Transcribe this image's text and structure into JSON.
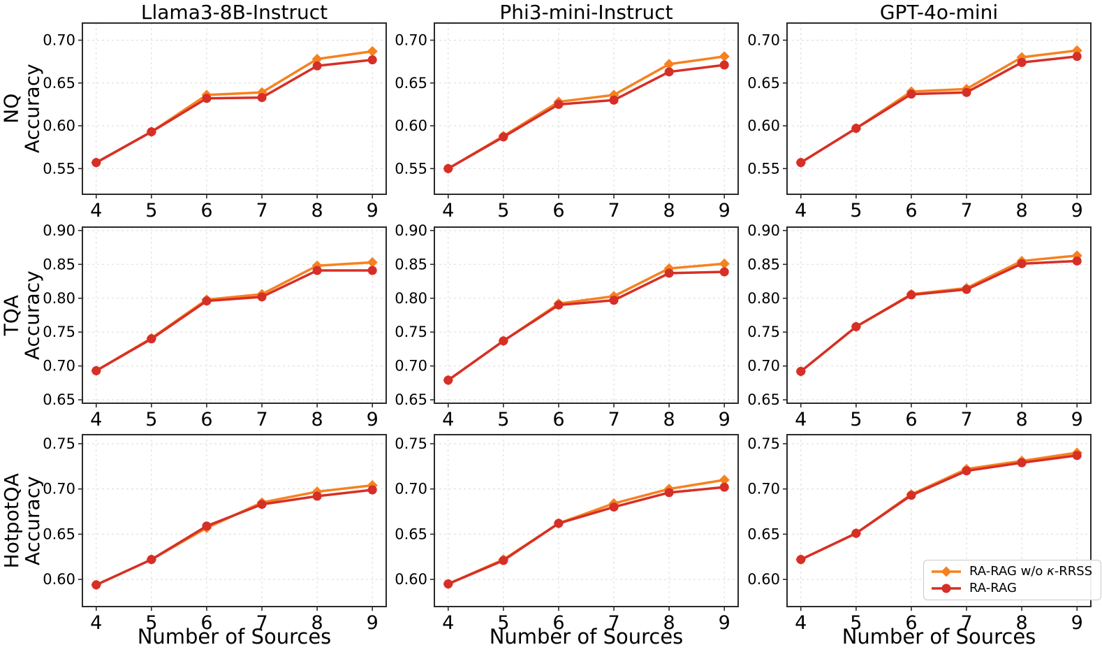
{
  "figure": {
    "column_titles": [
      "Llama3-8B-Instruct",
      "Phi3-mini-Instruct",
      "GPT-4o-mini"
    ],
    "row_labels": [
      {
        "dataset": "NQ",
        "metric": "Accuracy"
      },
      {
        "dataset": "TQA",
        "metric": "Accuracy"
      },
      {
        "dataset": "HotpotQA",
        "metric": "Accuracy"
      }
    ],
    "xlabel": "Number of Sources",
    "grid_style": "dashed",
    "legend": {
      "location": "lower right of bottom-right subplot",
      "entries": [
        {
          "label": "RA-RAG w/o κ-RRSS",
          "color": "#F5821F",
          "marker": "diamond"
        },
        {
          "label": "RA-RAG",
          "color": "#D62F27",
          "marker": "circle"
        }
      ]
    }
  },
  "chart_data": [
    {
      "type": "line",
      "model": "Llama3-8B-Instruct",
      "dataset": "NQ",
      "x": [
        4,
        5,
        6,
        7,
        8,
        9
      ],
      "xlim": [
        3.75,
        9.25
      ],
      "ylim": [
        0.52,
        0.72
      ],
      "yticks": [
        0.55,
        0.6,
        0.65,
        0.7
      ],
      "series": [
        {
          "name": "RA-RAG w/o κ-RRSS",
          "marker": "diamond",
          "color": "#F5821F",
          "values": [
            0.557,
            0.593,
            0.636,
            0.639,
            0.678,
            0.687
          ]
        },
        {
          "name": "RA-RAG",
          "marker": "circle",
          "color": "#D62F27",
          "values": [
            0.557,
            0.593,
            0.632,
            0.633,
            0.67,
            0.677
          ]
        }
      ]
    },
    {
      "type": "line",
      "model": "Phi3-mini-Instruct",
      "dataset": "NQ",
      "x": [
        4,
        5,
        6,
        7,
        8,
        9
      ],
      "xlim": [
        3.75,
        9.25
      ],
      "ylim": [
        0.52,
        0.72
      ],
      "yticks": [
        0.55,
        0.6,
        0.65,
        0.7
      ],
      "series": [
        {
          "name": "RA-RAG w/o κ-RRSS",
          "marker": "diamond",
          "color": "#F5821F",
          "values": [
            0.55,
            0.588,
            0.628,
            0.636,
            0.672,
            0.681
          ]
        },
        {
          "name": "RA-RAG",
          "marker": "circle",
          "color": "#D62F27",
          "values": [
            0.55,
            0.587,
            0.625,
            0.63,
            0.663,
            0.671
          ]
        }
      ]
    },
    {
      "type": "line",
      "model": "GPT-4o-mini",
      "dataset": "NQ",
      "x": [
        4,
        5,
        6,
        7,
        8,
        9
      ],
      "xlim": [
        3.75,
        9.25
      ],
      "ylim": [
        0.52,
        0.72
      ],
      "yticks": [
        0.55,
        0.6,
        0.65,
        0.7
      ],
      "series": [
        {
          "name": "RA-RAG w/o κ-RRSS",
          "marker": "diamond",
          "color": "#F5821F",
          "values": [
            0.557,
            0.597,
            0.64,
            0.643,
            0.68,
            0.688
          ]
        },
        {
          "name": "RA-RAG",
          "marker": "circle",
          "color": "#D62F27",
          "values": [
            0.557,
            0.597,
            0.637,
            0.639,
            0.674,
            0.681
          ]
        }
      ]
    },
    {
      "type": "line",
      "model": "Llama3-8B-Instruct",
      "dataset": "TQA",
      "x": [
        4,
        5,
        6,
        7,
        8,
        9
      ],
      "xlim": [
        3.75,
        9.25
      ],
      "ylim": [
        0.645,
        0.905
      ],
      "yticks": [
        0.65,
        0.7,
        0.75,
        0.8,
        0.85,
        0.9
      ],
      "series": [
        {
          "name": "RA-RAG w/o κ-RRSS",
          "marker": "diamond",
          "color": "#F5821F",
          "values": [
            0.693,
            0.741,
            0.798,
            0.806,
            0.848,
            0.853
          ]
        },
        {
          "name": "RA-RAG",
          "marker": "circle",
          "color": "#D62F27",
          "values": [
            0.693,
            0.74,
            0.796,
            0.802,
            0.841,
            0.841
          ]
        }
      ]
    },
    {
      "type": "line",
      "model": "Phi3-mini-Instruct",
      "dataset": "TQA",
      "x": [
        4,
        5,
        6,
        7,
        8,
        9
      ],
      "xlim": [
        3.75,
        9.25
      ],
      "ylim": [
        0.645,
        0.905
      ],
      "yticks": [
        0.65,
        0.7,
        0.75,
        0.8,
        0.85,
        0.9
      ],
      "series": [
        {
          "name": "RA-RAG w/o κ-RRSS",
          "marker": "diamond",
          "color": "#F5821F",
          "values": [
            0.679,
            0.737,
            0.792,
            0.803,
            0.844,
            0.851
          ]
        },
        {
          "name": "RA-RAG",
          "marker": "circle",
          "color": "#D62F27",
          "values": [
            0.679,
            0.737,
            0.79,
            0.797,
            0.837,
            0.839
          ]
        }
      ]
    },
    {
      "type": "line",
      "model": "GPT-4o-mini",
      "dataset": "TQA",
      "x": [
        4,
        5,
        6,
        7,
        8,
        9
      ],
      "xlim": [
        3.75,
        9.25
      ],
      "ylim": [
        0.645,
        0.905
      ],
      "yticks": [
        0.65,
        0.7,
        0.75,
        0.8,
        0.85,
        0.9
      ],
      "series": [
        {
          "name": "RA-RAG w/o κ-RRSS",
          "marker": "diamond",
          "color": "#F5821F",
          "values": [
            0.692,
            0.758,
            0.806,
            0.815,
            0.855,
            0.863
          ]
        },
        {
          "name": "RA-RAG",
          "marker": "circle",
          "color": "#D62F27",
          "values": [
            0.692,
            0.758,
            0.805,
            0.813,
            0.851,
            0.855
          ]
        }
      ]
    },
    {
      "type": "line",
      "model": "Llama3-8B-Instruct",
      "dataset": "HotpotQA",
      "x": [
        4,
        5,
        6,
        7,
        8,
        9
      ],
      "xlim": [
        3.75,
        9.25
      ],
      "ylim": [
        0.57,
        0.76
      ],
      "yticks": [
        0.6,
        0.65,
        0.7,
        0.75
      ],
      "series": [
        {
          "name": "RA-RAG w/o κ-RRSS",
          "marker": "diamond",
          "color": "#F5821F",
          "values": [
            0.594,
            0.622,
            0.657,
            0.685,
            0.697,
            0.704
          ]
        },
        {
          "name": "RA-RAG",
          "marker": "circle",
          "color": "#D62F27",
          "values": [
            0.594,
            0.622,
            0.659,
            0.683,
            0.692,
            0.699
          ]
        }
      ]
    },
    {
      "type": "line",
      "model": "Phi3-mini-Instruct",
      "dataset": "HotpotQA",
      "x": [
        4,
        5,
        6,
        7,
        8,
        9
      ],
      "xlim": [
        3.75,
        9.25
      ],
      "ylim": [
        0.57,
        0.76
      ],
      "yticks": [
        0.6,
        0.65,
        0.7,
        0.75
      ],
      "series": [
        {
          "name": "RA-RAG w/o κ-RRSS",
          "marker": "diamond",
          "color": "#F5821F",
          "values": [
            0.595,
            0.622,
            0.662,
            0.684,
            0.7,
            0.71
          ]
        },
        {
          "name": "RA-RAG",
          "marker": "circle",
          "color": "#D62F27",
          "values": [
            0.595,
            0.621,
            0.662,
            0.68,
            0.696,
            0.702
          ]
        }
      ]
    },
    {
      "type": "line",
      "model": "GPT-4o-mini",
      "dataset": "HotpotQA",
      "x": [
        4,
        5,
        6,
        7,
        8,
        9
      ],
      "xlim": [
        3.75,
        9.25
      ],
      "ylim": [
        0.57,
        0.76
      ],
      "yticks": [
        0.6,
        0.65,
        0.7,
        0.75
      ],
      "series": [
        {
          "name": "RA-RAG w/o κ-RRSS",
          "marker": "diamond",
          "color": "#F5821F",
          "values": [
            0.622,
            0.651,
            0.694,
            0.722,
            0.731,
            0.74
          ]
        },
        {
          "name": "RA-RAG",
          "marker": "circle",
          "color": "#D62F27",
          "values": [
            0.622,
            0.651,
            0.693,
            0.72,
            0.729,
            0.737
          ]
        }
      ]
    }
  ]
}
